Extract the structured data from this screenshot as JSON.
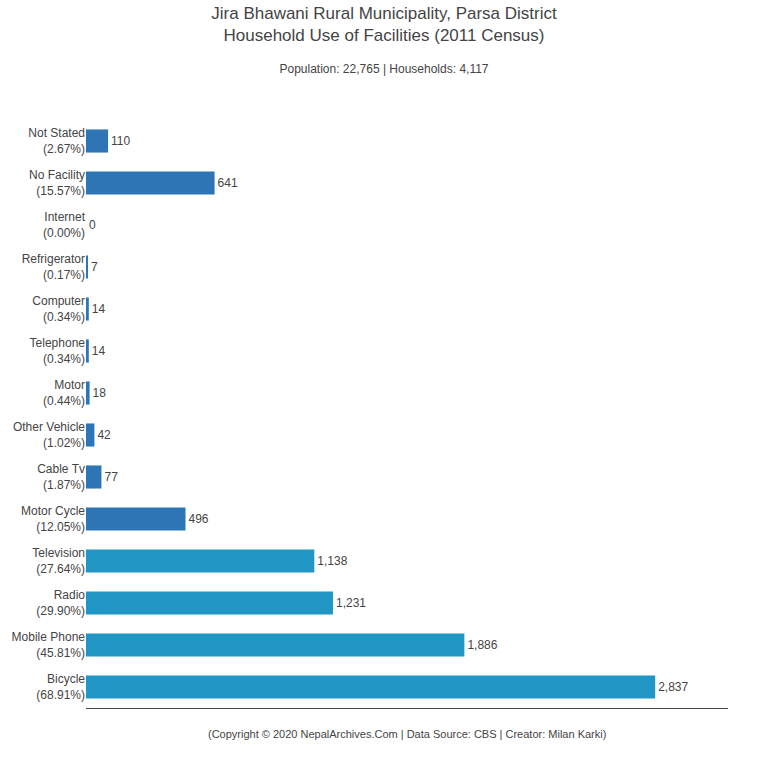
{
  "chart_data": {
    "type": "bar",
    "orientation": "horizontal",
    "title": "Jira Bhawani Rural Municipality, Parsa District\nHousehold Use of Facilities (2011 Census)",
    "subtitle": "Population: 22,765 | Households: 4,117",
    "annotations": [
      "(Copyright © 2020 NepalArchives.Com | Data Source: CBS | Creator: Milan Karki)"
    ],
    "categories": [
      "Not Stated\n(2.67%)",
      "No Facility\n(15.57%)",
      "Internet\n(0.00%)",
      "Refrigerator\n(0.17%)",
      "Computer\n(0.34%)",
      "Telephone\n(0.34%)",
      "Motor\n(0.44%)",
      "Other Vehicle\n(1.02%)",
      "Cable Tv\n(1.87%)",
      "Motor Cycle\n(12.05%)",
      "Television\n(27.64%)",
      "Radio\n(29.90%)",
      "Mobile Phone\n(45.81%)",
      "Bicycle\n(68.91%)"
    ],
    "values": [
      110,
      641,
      0,
      7,
      14,
      14,
      18,
      42,
      77,
      496,
      1138,
      1231,
      1886,
      2837
    ],
    "value_labels": [
      "110",
      "641",
      "0",
      "7",
      "14",
      "14",
      "18",
      "42",
      "77",
      "496",
      "1,138",
      "1,231",
      "1,886",
      "2,837"
    ],
    "colors": [
      "#2e75b6",
      "#2e75b6",
      "#2e75b6",
      "#2e75b6",
      "#2e75b6",
      "#2e75b6",
      "#2e75b6",
      "#2e75b6",
      "#2e75b6",
      "#2e75b6",
      "#2196c4",
      "#2196c4",
      "#2196c4",
      "#2196c4"
    ],
    "xlim": [
      0,
      3200
    ],
    "data_labels": true,
    "tick_labels": "y",
    "grid": false
  }
}
